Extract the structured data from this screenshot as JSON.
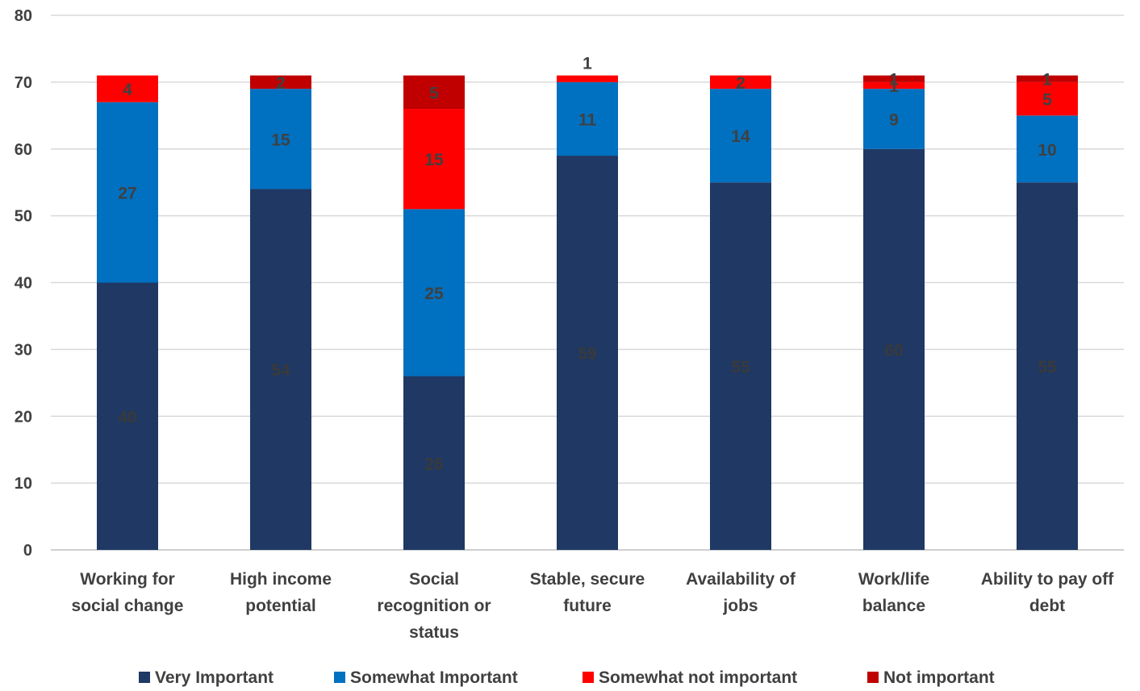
{
  "chart_data": {
    "type": "bar",
    "stacked": true,
    "categories": [
      "Working for social change",
      "High income potential",
      "Social recognition or status",
      "Stable, secure future",
      "Availability of jobs",
      "Work/life balance",
      "Ability to pay off debt"
    ],
    "category_lines": [
      [
        "Working for",
        "social change"
      ],
      [
        "High income",
        "potential"
      ],
      [
        "Social",
        "recognition or",
        "status"
      ],
      [
        "Stable, secure",
        "future"
      ],
      [
        "Availability of",
        "jobs"
      ],
      [
        "Work/life",
        "balance"
      ],
      [
        "Ability to pay off",
        "debt"
      ]
    ],
    "series": [
      {
        "name": "Very Important",
        "color": "#1f3864",
        "label_color": "#3a3a3a",
        "values": [
          40,
          54,
          26,
          59,
          55,
          60,
          55
        ]
      },
      {
        "name": "Somewhat Important",
        "color": "#0070c0",
        "label_color": "#404040",
        "values": [
          27,
          15,
          25,
          11,
          14,
          9,
          10
        ]
      },
      {
        "name": "Somewhat not important",
        "color": "#ff0000",
        "label_color": "#404040",
        "values": [
          4,
          0,
          15,
          1,
          2,
          1,
          5
        ]
      },
      {
        "name": "Not important",
        "color": "#c00000",
        "label_color": "#404040",
        "values": [
          0,
          2,
          5,
          0,
          0,
          1,
          1
        ]
      }
    ],
    "ylim": [
      0,
      80
    ],
    "yticks": [
      0,
      10,
      20,
      30,
      40,
      50,
      60,
      70,
      80
    ],
    "grid": true,
    "legend_position": "bottom",
    "title": "",
    "xlabel": "",
    "ylabel": ""
  }
}
